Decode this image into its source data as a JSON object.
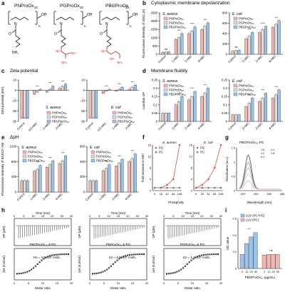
{
  "labels": {
    "a": "a",
    "b": "b",
    "c": "c",
    "d": "d",
    "e": "e",
    "f": "f",
    "g": "g",
    "h": "h",
    "i": "i"
  },
  "panel_a": {
    "compounds": [
      "PNProOx",
      "PGProOx",
      "PBGProOx"
    ],
    "sub": "20",
    "oh": "OH",
    "nh2": "NH₂",
    "n": "n",
    "colors": {
      "backbone": "#222222",
      "guanidine": "#c0392b"
    }
  },
  "panel_b": {
    "title": "Cytoplasmic membrane depolarization",
    "ylabel": "Fluorescence intensity of DiSC₃(5)"
  },
  "panel_c": {
    "title": "Zeta potential",
    "ylabel": "Zeta potential (mV)"
  },
  "panel_d": {
    "title": "Membrane fluidity",
    "ylabel": "Laurdan GP"
  },
  "panel_e": {
    "title": "ΔpH",
    "ylabel": "Fluorescence intensity of BCECF-AM"
  },
  "panel_f": {
    "ylabel": "Fold increase in MIC",
    "xlabel": "Phospholipid (μg/mL)"
  },
  "panel_g": {
    "title": "PBGProOx₂₀:PG",
    "xlabel": "Wavelength (nm)",
    "ylabel": "Absorbance (a.u.)"
  },
  "panel_h": {
    "ylabel_top": "DP (μW)",
    "ylabel_bottom": "ΔH (KJ/mol)",
    "xlabel_top": "Time (min)",
    "xlabel_bottom": "Molar ratio"
  },
  "panel_i": {
    "ylabel": "OD value",
    "xlabel": "PBGProOx₂₀ (μg/mL)"
  },
  "chart_data": [
    {
      "id": "b1",
      "type": "bar",
      "title": "S. aureus",
      "categories": [
        "Control",
        "1×MIC",
        "2×MIC",
        "4×MIC"
      ],
      "ylim": [
        0,
        2500
      ],
      "yticks": [
        0,
        500,
        1000,
        1500,
        2000,
        2500
      ],
      "series": [
        {
          "name": "PNProOx₂₀",
          "values": [
            120,
            900,
            1250,
            1500
          ]
        },
        {
          "name": "PGProOx₂₀",
          "values": [
            130,
            1000,
            1400,
            1700
          ]
        },
        {
          "name": "PBGProOx₂₀",
          "values": [
            140,
            1250,
            1650,
            1900
          ]
        }
      ],
      "sig": [
        "ns",
        "***",
        "****",
        "***"
      ]
    },
    {
      "id": "b2",
      "type": "bar",
      "title": "E. coli",
      "categories": [
        "Control",
        "1×MIC",
        "2×MIC",
        "4×MIC"
      ],
      "ylim": [
        0,
        800
      ],
      "yticks": [
        0,
        200,
        400,
        600,
        800
      ],
      "series": [
        {
          "name": "PNProOx₂₀",
          "values": [
            60,
            300,
            420,
            520
          ]
        },
        {
          "name": "PGProOx₂₀",
          "values": [
            70,
            350,
            480,
            580
          ]
        },
        {
          "name": "PBGProOx₂₀",
          "values": [
            80,
            420,
            540,
            650
          ]
        }
      ],
      "sig": [
        "ns",
        "***",
        "****",
        "***"
      ]
    },
    {
      "id": "c1",
      "type": "bar",
      "title": "S. aureus",
      "categories": [
        "Control",
        "1/2×MIC",
        "1×MIC",
        "2×MIC"
      ],
      "ylim": [
        -30,
        10
      ],
      "yticks": [
        -30,
        -20,
        -10,
        0,
        10
      ],
      "series": [
        {
          "name": "PNProOx₂₀",
          "values": [
            -27,
            -4,
            -2,
            2
          ]
        },
        {
          "name": "PGProOx₂₀",
          "values": [
            -27,
            -2,
            1,
            4
          ]
        },
        {
          "name": "PBGProOx₂₀",
          "values": [
            -27,
            1,
            4,
            6
          ]
        }
      ],
      "sig": [
        "",
        "***",
        "***",
        "***"
      ]
    },
    {
      "id": "c2",
      "type": "bar",
      "title": "E. coli",
      "categories": [
        "Control",
        "1/2×MIC",
        "1×MIC",
        "2×MIC"
      ],
      "ylim": [
        -30,
        10
      ],
      "yticks": [
        -30,
        -20,
        -10,
        0,
        10
      ],
      "series": [
        {
          "name": "PNProOx₂₀",
          "values": [
            -27,
            -3,
            -1,
            1
          ]
        },
        {
          "name": "PGProOx₂₀",
          "values": [
            -27,
            -1,
            1,
            3
          ]
        },
        {
          "name": "PBGProOx₂₀",
          "values": [
            -27,
            1,
            3,
            5
          ]
        }
      ],
      "sig": [
        "",
        "***",
        "***",
        "***"
      ]
    },
    {
      "id": "d1",
      "type": "bar",
      "title": "S. aureus",
      "categories": [
        "Control",
        "1×MIC",
        "2×MIC",
        "4×MIC"
      ],
      "ylim": [
        0,
        0.25
      ],
      "yticks": [
        0,
        0.05,
        0.1,
        0.15,
        0.2,
        0.25
      ],
      "series": [
        {
          "name": "PNProOx₂₀",
          "values": [
            0.05,
            0.1,
            0.13,
            0.15
          ]
        },
        {
          "name": "PGProOx₂₀",
          "values": [
            0.05,
            0.12,
            0.15,
            0.17
          ]
        },
        {
          "name": "PBGProOx₂₀",
          "values": [
            0.05,
            0.15,
            0.18,
            0.2
          ]
        }
      ],
      "sig": [
        "",
        "***",
        "***",
        "***"
      ]
    },
    {
      "id": "d2",
      "type": "bar",
      "title": "E. coli",
      "categories": [
        "Control",
        "1×MIC",
        "2×MIC",
        "4×MIC"
      ],
      "ylim": [
        0,
        0.25
      ],
      "yticks": [
        0,
        0.05,
        0.1,
        0.15,
        0.2,
        0.25
      ],
      "series": [
        {
          "name": "PNProOx₂₀",
          "values": [
            0.04,
            0.09,
            0.12,
            0.14
          ]
        },
        {
          "name": "PGProOx₂₀",
          "values": [
            0.04,
            0.11,
            0.14,
            0.16
          ]
        },
        {
          "name": "PBGProOx₂₀",
          "values": [
            0.04,
            0.14,
            0.17,
            0.19
          ]
        }
      ],
      "sig": [
        "",
        "***",
        "***",
        "***"
      ]
    },
    {
      "id": "e1",
      "type": "bar",
      "title": "S. aureus",
      "categories": [
        "Control",
        "1×MIC",
        "2×MIC",
        "4×MIC"
      ],
      "ylim": [
        0,
        1200
      ],
      "yticks": [
        0,
        400,
        800,
        1200
      ],
      "series": [
        {
          "name": "PNProOx₂₀",
          "values": [
            300,
            550,
            650,
            750
          ]
        },
        {
          "name": "PGProOx₂₀",
          "values": [
            300,
            600,
            720,
            820
          ]
        },
        {
          "name": "PBGProOx₂₀",
          "values": [
            300,
            700,
            820,
            950
          ]
        }
      ],
      "sig": [
        "",
        "***",
        "***",
        "***"
      ]
    },
    {
      "id": "e2",
      "type": "bar",
      "title": "E. coli",
      "categories": [
        "Control",
        "1×MIC",
        "2×MIC",
        "4×MIC"
      ],
      "ylim": [
        0,
        600
      ],
      "yticks": [
        0,
        200,
        400,
        600
      ],
      "series": [
        {
          "name": "PNProOx₂₀",
          "values": [
            150,
            280,
            340,
            400
          ]
        },
        {
          "name": "PGProOx₂₀",
          "values": [
            150,
            310,
            380,
            440
          ]
        },
        {
          "name": "PBGProOx₂₀",
          "values": [
            150,
            360,
            430,
            500
          ]
        }
      ],
      "sig": [
        "",
        "***",
        "***",
        "***"
      ]
    },
    {
      "id": "f1",
      "type": "line",
      "title": "S. aureus",
      "x": [
        "0",
        "16",
        "32",
        "64",
        "128"
      ],
      "ylim": [
        0,
        16
      ],
      "yticks": [
        0,
        4,
        8,
        12,
        16
      ],
      "series": [
        {
          "name": "PG",
          "values": [
            1,
            1,
            2,
            4,
            16
          ]
        },
        {
          "name": "PC",
          "values": [
            1,
            1,
            1,
            1,
            1
          ]
        }
      ]
    },
    {
      "id": "f2",
      "type": "line",
      "title": "E. coli",
      "x": [
        "0",
        "16",
        "32",
        "64",
        "128"
      ],
      "ylim": [
        0,
        16
      ],
      "yticks": [
        0,
        4,
        8,
        12,
        16
      ],
      "series": [
        {
          "name": "PG",
          "values": [
            1,
            2,
            4,
            8,
            16
          ]
        },
        {
          "name": "PC",
          "values": [
            1,
            1,
            1,
            1,
            1
          ]
        }
      ]
    },
    {
      "id": "g",
      "type": "line",
      "xticks": [
        220,
        240,
        260,
        280
      ],
      "ylim": [
        0,
        1.5
      ],
      "yticks": [
        0,
        0.5,
        1.0,
        1.5
      ],
      "legend": [
        "1:0",
        "1:1",
        "1:2",
        "1:3",
        "0:1"
      ]
    },
    {
      "id": "h1",
      "type": "scatter",
      "label": "PBGProOx₂₀ & PG",
      "kd": "Kᴅ = 4.5×10⁵ mol/L",
      "time_ticks": [
        0,
        5,
        10,
        15,
        20,
        25,
        30
      ],
      "molar_ticks": [
        0,
        5,
        10,
        15,
        20
      ]
    },
    {
      "id": "h2",
      "type": "scatter",
      "label": "PNProOx₂₀ & PG",
      "kd": "Kᴅ = 6.9×10⁵ mol/L",
      "time_ticks": [
        0,
        5,
        10,
        15,
        20,
        25,
        30
      ],
      "molar_ticks": [
        0,
        5,
        10,
        15,
        20
      ]
    },
    {
      "id": "h3",
      "type": "scatter",
      "label": "PGProOx₂₀ & PG",
      "kd": "Kᴅ = 1.1×10⁵ mol/L",
      "time_ticks": [
        0,
        5,
        10,
        15,
        20,
        25,
        30
      ],
      "molar_ticks": [
        0,
        5,
        10,
        15,
        20
      ]
    },
    {
      "id": "i",
      "type": "bar",
      "categories": [
        "0",
        "12",
        "25",
        "50"
      ],
      "ylim": [
        0,
        0.6
      ],
      "yticks": [
        0,
        0.2,
        0.4,
        0.6
      ],
      "series": [
        {
          "name": "LUV (PC+PG)",
          "values": [
            0.17,
            0.3,
            0.38,
            0.43
          ]
        },
        {
          "name": "LUV (PC)",
          "values": [
            0.16,
            0.17,
            0.17,
            0.17
          ]
        }
      ],
      "sig": [
        "***",
        "ns"
      ]
    }
  ],
  "colors": {
    "s1": "#f4b6b3",
    "s2": "#dcdcdc",
    "s3": "#9fc1e8",
    "lineRed": "#d9534f",
    "lineGray": "#777777",
    "ax": "#000000"
  }
}
